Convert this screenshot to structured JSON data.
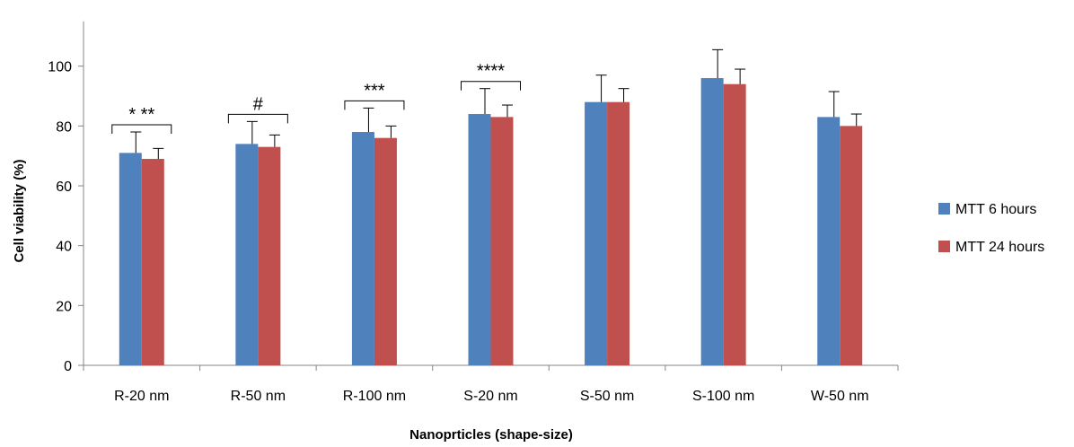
{
  "chart_data": {
    "type": "bar",
    "title": "",
    "xlabel": "Nanoprticles (shape-size)",
    "ylabel": "Cell viability (%)",
    "ylim": [
      0,
      115
    ],
    "yticks": [
      0,
      20,
      40,
      60,
      80,
      100
    ],
    "grid": false,
    "legend_position": "right",
    "categories": [
      "R-20 nm",
      "R-50 nm",
      "R-100 nm",
      "S-20 nm",
      "S-50 nm",
      "S-100 nm",
      "W-50 nm"
    ],
    "series": [
      {
        "name": "MTT 6 hours",
        "color": "#4F81BD",
        "values": [
          71,
          74,
          78,
          84,
          88,
          96,
          83
        ],
        "error": [
          7,
          7.5,
          8,
          8.5,
          9,
          9.5,
          8.5
        ]
      },
      {
        "name": "MTT 24 hours",
        "color": "#C0504D",
        "values": [
          69,
          73,
          76,
          83,
          88,
          94,
          80
        ],
        "error": [
          3.5,
          4,
          4,
          4,
          4.5,
          5,
          4
        ]
      }
    ],
    "annotations": [
      {
        "category": "R-20 nm",
        "label": "* **"
      },
      {
        "category": "R-50 nm",
        "label": "#"
      },
      {
        "category": "R-100 nm",
        "label": "***"
      },
      {
        "category": "S-20 nm",
        "label": "****"
      }
    ]
  }
}
